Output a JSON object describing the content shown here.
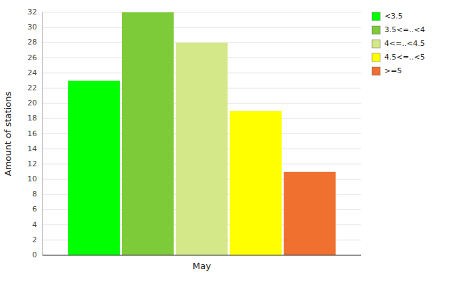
{
  "chart_data": {
    "type": "bar",
    "ylabel": "Amount of stations",
    "categories": [
      "May"
    ],
    "series": [
      {
        "name": "<3.5",
        "color": "#00ff00",
        "values": [
          23
        ]
      },
      {
        "name": "3.5<=..<4",
        "color": "#7ecb3a",
        "values": [
          32
        ]
      },
      {
        "name": "4<=..<4.5",
        "color": "#d4e88a",
        "values": [
          28
        ]
      },
      {
        "name": "4.5<=..<5",
        "color": "#ffff00",
        "values": [
          19
        ]
      },
      {
        "name": ">=5",
        "color": "#f07030",
        "values": [
          11
        ]
      }
    ],
    "ylim": [
      0,
      32
    ],
    "yticks": [
      0,
      2,
      4,
      6,
      8,
      10,
      12,
      14,
      16,
      18,
      20,
      22,
      24,
      26,
      28,
      30,
      32
    ],
    "grid": true,
    "legend": "upper right"
  }
}
